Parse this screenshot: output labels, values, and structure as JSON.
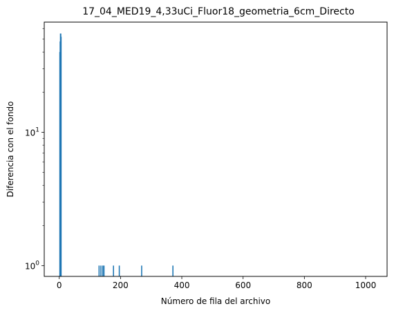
{
  "chart_data": {
    "type": "bar",
    "title": "17_04_MED19_4,33uCi_Fluor18_geometria_6cm_Directo",
    "xlabel": "Número de fila del archivo",
    "ylabel": "Diferencia con el fondo",
    "yscale": "log",
    "xlim": [
      -49,
      1070
    ],
    "ylim": [
      0.83,
      67
    ],
    "grid": false,
    "x_ticks": [
      {
        "value": 0,
        "label": "0"
      },
      {
        "value": 200,
        "label": "200"
      },
      {
        "value": 400,
        "label": "400"
      },
      {
        "value": 600,
        "label": "600"
      },
      {
        "value": 800,
        "label": "800"
      },
      {
        "value": 1000,
        "label": "1000"
      }
    ],
    "y_major_ticks": [
      {
        "value": 1,
        "base": "10",
        "exp": "0"
      },
      {
        "value": 10,
        "base": "10",
        "exp": "1"
      }
    ],
    "y_minor_ticks": [
      2,
      3,
      4,
      5,
      6,
      7,
      8,
      9,
      20,
      30,
      40,
      50,
      60
    ],
    "color": "#1f77b4",
    "points": [
      {
        "x": 2,
        "y": 40
      },
      {
        "x": 3,
        "y": 48
      },
      {
        "x": 4,
        "y": 55
      },
      {
        "x": 5,
        "y": 55
      },
      {
        "x": 6,
        "y": 52
      },
      {
        "x": 130,
        "y": 1
      },
      {
        "x": 136,
        "y": 1
      },
      {
        "x": 142,
        "y": 1
      },
      {
        "x": 146,
        "y": 1
      },
      {
        "x": 177,
        "y": 1
      },
      {
        "x": 196,
        "y": 1
      },
      {
        "x": 269,
        "y": 1
      },
      {
        "x": 371,
        "y": 1
      }
    ]
  }
}
